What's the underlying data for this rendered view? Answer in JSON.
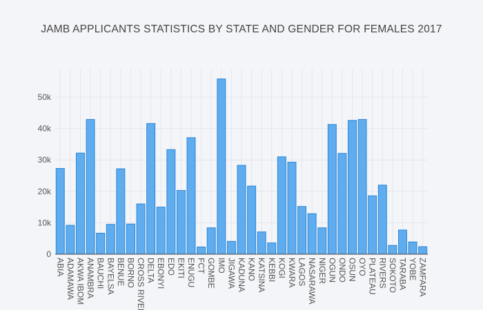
{
  "chart_data": {
    "type": "bar",
    "title": "JAMB APPLICANTS STATISTICS BY STATE AND GENDER FOR FEMALES 2017",
    "xlabel": "",
    "ylabel": "",
    "ylim": [
      0,
      59000
    ],
    "yticks": [
      0,
      10000,
      20000,
      30000,
      40000,
      50000
    ],
    "ytick_labels": [
      "0",
      "10k",
      "20k",
      "30k",
      "40k",
      "50k"
    ],
    "grid": true,
    "legend": "none",
    "bar_color": "#5fadef",
    "bar_edge_color": "#2b86d6",
    "categories": [
      "ABIA",
      "ADAMAWA",
      "AKWA IBOM",
      "ANAMBRA",
      "BAUCHI",
      "BAYELSA",
      "BENUE",
      "BORNO",
      "CROSS RIVER",
      "DELTA",
      "EBONYI",
      "EDO",
      "EKITI",
      "ENUGU",
      "FCT",
      "GOMBE",
      "IMO",
      "JIGAWA",
      "KADUNA",
      "KANO",
      "KATSINA",
      "KEBBI",
      "KOGI",
      "KWARA",
      "LAGOS",
      "NASARAWA",
      "NIGER",
      "OGUN",
      "ONDO",
      "OSUN",
      "OYO",
      "PLATEAU",
      "RIVERS",
      "SOKOTO",
      "TARABA",
      "YOBE",
      "ZAMFARA"
    ],
    "values": [
      27300,
      9200,
      32200,
      42900,
      6700,
      9500,
      27200,
      9600,
      16000,
      41600,
      15000,
      33300,
      20300,
      37100,
      2300,
      8400,
      55800,
      4100,
      28300,
      21700,
      7100,
      3600,
      31000,
      29300,
      15200,
      12900,
      8400,
      41300,
      32100,
      42600,
      42900,
      18600,
      22000,
      2800,
      7700,
      3900,
      2400
    ]
  }
}
